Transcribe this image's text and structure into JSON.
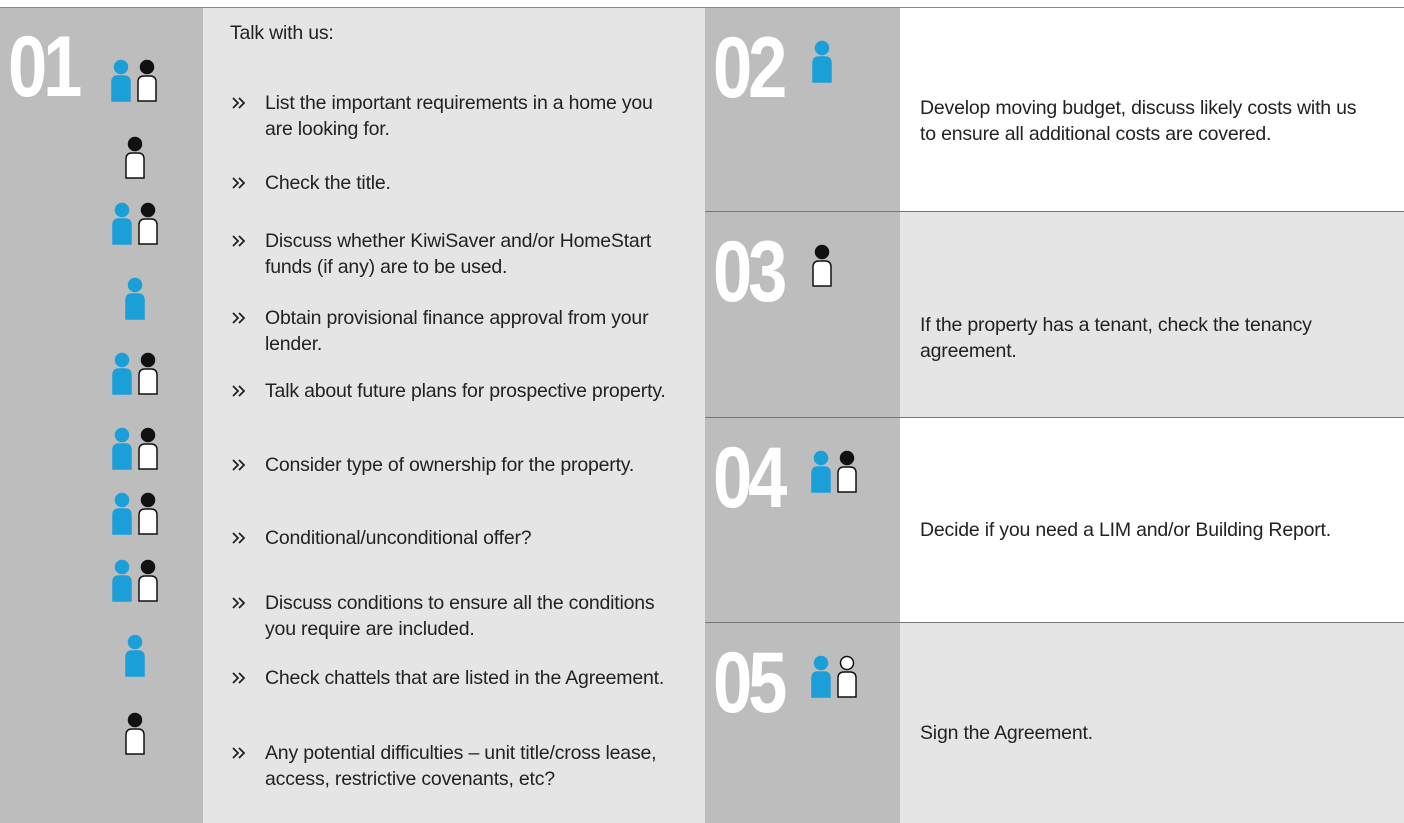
{
  "steps": [
    {
      "number": "01",
      "heading": "Talk with us:",
      "items": [
        "List the important requirements in a home you are looking for.",
        "Check the title.",
        "Discuss whether KiwiSaver and/or HomeStart funds (if any) are to be used.",
        "Obtain provisional finance approval from your lender.",
        "Talk about future plans for prospective property.",
        "Consider type of ownership for the property.",
        "Conditional/unconditional offer?",
        "Discuss conditions to ensure all the conditions you require are included.",
        "Check chattels that are listed in the Agreement.",
        "Any potential difficulties – unit title/cross lease, access, restrictive covenants, etc?"
      ]
    },
    {
      "number": "02",
      "text": "Develop moving budget, discuss likely costs with us to ensure all additional costs are covered."
    },
    {
      "number": "03",
      "text": "If the property has a tenant, check the tenancy agreement."
    },
    {
      "number": "04",
      "text": "Decide if you need a LIM and/or Building Report."
    },
    {
      "number": "05",
      "text": "Sign the Agreement."
    }
  ]
}
